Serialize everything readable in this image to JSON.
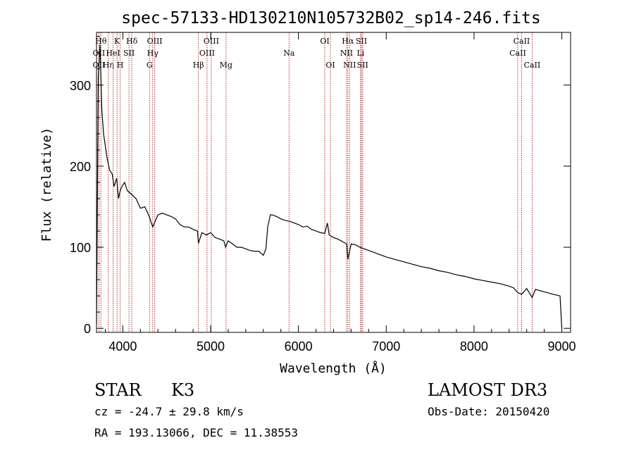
{
  "chart_data": {
    "type": "line",
    "title": "spec-57133-HD130210N105732B02_sp14-246.fits",
    "xlabel": "Wavelength (Å)",
    "ylabel": "Flux (relative)",
    "xlim": [
      3700,
      9100
    ],
    "ylim": [
      -5,
      365
    ],
    "xticks": [
      4000,
      5000,
      6000,
      7000,
      8000,
      9000
    ],
    "yticks": [
      0,
      100,
      200,
      300
    ],
    "x": [
      3700,
      3720,
      3740,
      3760,
      3780,
      3800,
      3820,
      3850,
      3880,
      3900,
      3930,
      3950,
      3970,
      3990,
      4020,
      4050,
      4100,
      4150,
      4200,
      4250,
      4300,
      4340,
      4400,
      4450,
      4500,
      4550,
      4600,
      4650,
      4700,
      4750,
      4800,
      4850,
      4861,
      4900,
      4950,
      5000,
      5050,
      5100,
      5150,
      5170,
      5200,
      5250,
      5300,
      5350,
      5400,
      5450,
      5500,
      5550,
      5600,
      5630,
      5650,
      5680,
      5700,
      5750,
      5800,
      5850,
      5900,
      5950,
      6000,
      6050,
      6100,
      6150,
      6200,
      6250,
      6300,
      6330,
      6350,
      6400,
      6450,
      6500,
      6550,
      6563,
      6600,
      6650,
      6700,
      6750,
      6800,
      6900,
      7000,
      7100,
      7200,
      7300,
      7400,
      7500,
      7600,
      7700,
      7800,
      7900,
      8000,
      8100,
      8200,
      8300,
      8400,
      8450,
      8498,
      8542,
      8600,
      8662,
      8700,
      8800,
      8900,
      8980,
      9000
    ],
    "y": [
      5,
      310,
      350,
      270,
      240,
      225,
      210,
      195,
      190,
      175,
      185,
      160,
      170,
      175,
      180,
      170,
      165,
      160,
      148,
      150,
      138,
      125,
      140,
      142,
      140,
      138,
      135,
      128,
      125,
      125,
      122,
      120,
      105,
      118,
      115,
      118,
      112,
      110,
      108,
      100,
      108,
      104,
      100,
      100,
      98,
      96,
      95,
      95,
      90,
      98,
      125,
      140,
      140,
      138,
      135,
      133,
      132,
      130,
      128,
      125,
      126,
      122,
      120,
      118,
      117,
      130,
      115,
      112,
      110,
      107,
      104,
      85,
      104,
      103,
      100,
      98,
      96,
      92,
      88,
      85,
      82,
      79,
      76,
      74,
      71,
      69,
      66,
      64,
      61,
      59,
      57,
      55,
      52,
      50,
      44,
      42,
      49,
      38,
      48,
      45,
      42,
      40,
      0
    ]
  },
  "line_markers": [
    {
      "label": "OII",
      "wavelength": 3727,
      "row": 2
    },
    {
      "label": "Hθ",
      "wavelength": 3750,
      "row": 1
    },
    {
      "label": "OII",
      "wavelength": 3727,
      "row": 3
    },
    {
      "label": "Hη",
      "wavelength": 3835,
      "row": 3
    },
    {
      "label": "HeI",
      "wavelength": 3889,
      "row": 2
    },
    {
      "label": "K",
      "wavelength": 3934,
      "row": 1
    },
    {
      "label": "SII",
      "wavelength": 4070,
      "row": 2
    },
    {
      "label": "H",
      "wavelength": 3969,
      "row": 3
    },
    {
      "label": "Hδ",
      "wavelength": 4102,
      "row": 1
    },
    {
      "label": "OIII",
      "wavelength": 4363,
      "row": 1
    },
    {
      "label": "Hγ",
      "wavelength": 4340,
      "row": 2
    },
    {
      "label": "G",
      "wavelength": 4304,
      "row": 3
    },
    {
      "label": "Hβ",
      "wavelength": 4861,
      "row": 3
    },
    {
      "label": "OIII",
      "wavelength": 5007,
      "row": 1
    },
    {
      "label": "OIII",
      "wavelength": 4959,
      "row": 2
    },
    {
      "label": "Mg",
      "wavelength": 5175,
      "row": 3
    },
    {
      "label": "Na",
      "wavelength": 5893,
      "row": 2
    },
    {
      "label": "OI",
      "wavelength": 6300,
      "row": 1
    },
    {
      "label": "OI",
      "wavelength": 6364,
      "row": 3
    },
    {
      "label": "Hα",
      "wavelength": 6563,
      "row": 1
    },
    {
      "label": "NII",
      "wavelength": 6548,
      "row": 2
    },
    {
      "label": "NII",
      "wavelength": 6583,
      "row": 3
    },
    {
      "label": "SII",
      "wavelength": 6717,
      "row": 1
    },
    {
      "label": "Li",
      "wavelength": 6708,
      "row": 2
    },
    {
      "label": "SII",
      "wavelength": 6731,
      "row": 3
    },
    {
      "label": "CaII",
      "wavelength": 8542,
      "row": 1
    },
    {
      "label": "CaII",
      "wavelength": 8498,
      "row": 2
    },
    {
      "label": "CaII",
      "wavelength": 8662,
      "row": 3
    }
  ],
  "info": {
    "object_type": "STAR",
    "subclass": "K3",
    "survey": "LAMOST DR3",
    "cz": "cz = -24.7 ± 29.8 km/s",
    "obs_date": "Obs-Date: 20150420",
    "coords": "RA = 193.13066, DEC =  11.38553"
  },
  "colors": {
    "line": "#000000",
    "marker": "#aa2222",
    "axes": "#000000"
  }
}
